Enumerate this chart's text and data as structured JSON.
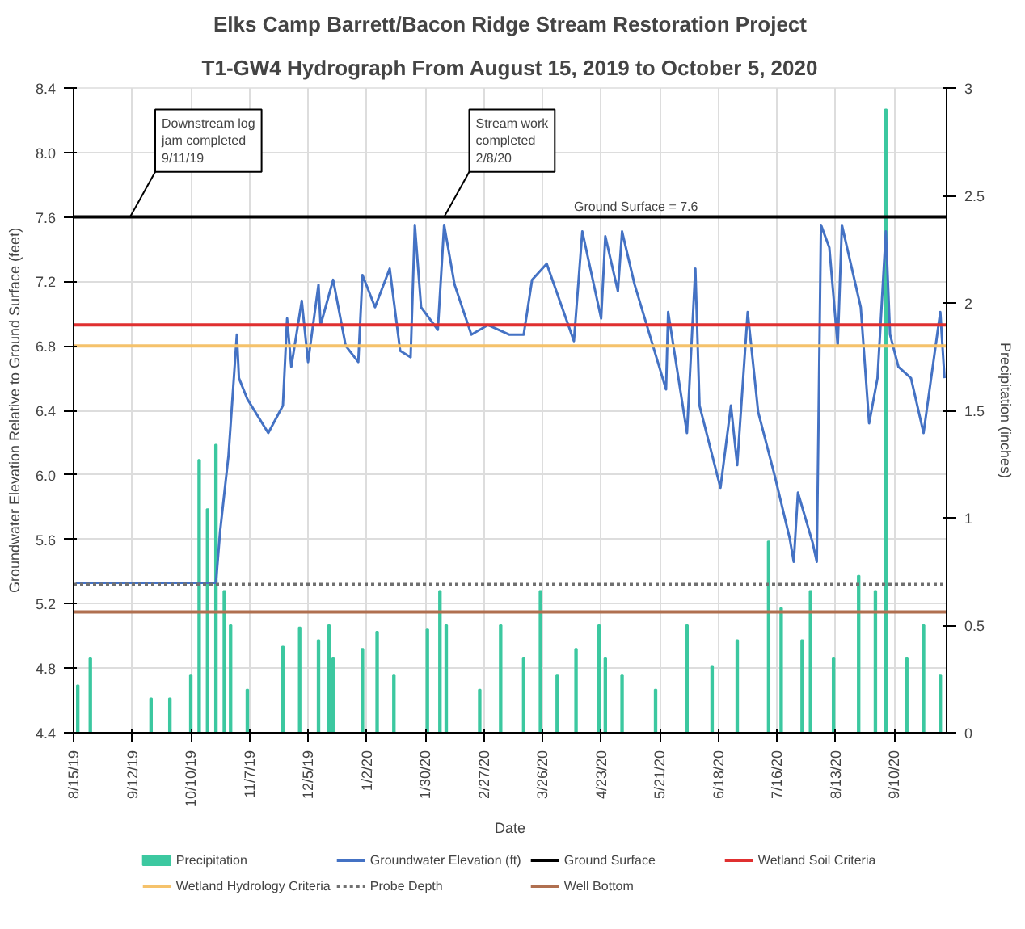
{
  "chart_data": {
    "type": "line",
    "title": "Elks Camp Barrett/Bacon Ridge Stream Restoration Project",
    "subtitle": "T1-GW4 Hydrograph From August 15, 2019 to October 5, 2020",
    "xlabel": "Date",
    "ylabel": "Groundwater Elevation Relative to Ground Surface (feet)",
    "y2label": "Precipitation (inches)",
    "xlim": [
      "2019-08-15",
      "2020-10-05"
    ],
    "xticks": [
      {
        "value": "2019-08-15",
        "label": "8/15/19"
      },
      {
        "value": "2019-09-12",
        "label": "9/12/19"
      },
      {
        "value": "2019-10-10",
        "label": "10/10/19"
      },
      {
        "value": "2019-11-07",
        "label": "11/7/19"
      },
      {
        "value": "2019-12-05",
        "label": "12/5/19"
      },
      {
        "value": "2020-01-02",
        "label": "1/2/20"
      },
      {
        "value": "2020-01-30",
        "label": "1/30/20"
      },
      {
        "value": "2020-02-27",
        "label": "2/27/20"
      },
      {
        "value": "2020-03-26",
        "label": "3/26/20"
      },
      {
        "value": "2020-04-23",
        "label": "4/23/20"
      },
      {
        "value": "2020-05-21",
        "label": "5/21/20"
      },
      {
        "value": "2020-06-18",
        "label": "6/18/20"
      },
      {
        "value": "2020-07-16",
        "label": "7/16/20"
      },
      {
        "value": "2020-08-13",
        "label": "8/13/20"
      },
      {
        "value": "2020-09-10",
        "label": "9/10/20"
      }
    ],
    "ylim": [
      4.4,
      8.4
    ],
    "yticks": [
      4.4,
      4.8,
      5.2,
      5.6,
      {
        "value": 6,
        "label": "6.0"
      },
      6.4,
      6.8,
      7.2,
      7.6,
      {
        "value": 8,
        "label": "8.0"
      },
      8.4
    ],
    "y2lim": [
      0,
      3
    ],
    "y2ticks": [
      0,
      0.5,
      1,
      1.5,
      2,
      2.5,
      3
    ],
    "grid": true,
    "legend": "bottom",
    "marker": "none",
    "line_style": "solid",
    "series": [
      {
        "name": "Precipitation",
        "type": "bar",
        "axis": "y2",
        "color": "#3cc8a0",
        "x": [
          "2019-08-17",
          "2019-08-23",
          "2019-09-21",
          "2019-09-30",
          "2019-10-10",
          "2019-10-14",
          "2019-10-18",
          "2019-10-22",
          "2019-10-26",
          "2019-10-29",
          "2019-11-06",
          "2019-11-23",
          "2019-12-01",
          "2019-12-10",
          "2019-12-15",
          "2019-12-17",
          "2019-12-31",
          "2020-01-07",
          "2020-01-15",
          "2020-01-31",
          "2020-02-06",
          "2020-02-09",
          "2020-02-25",
          "2020-03-06",
          "2020-03-17",
          "2020-03-25",
          "2020-04-02",
          "2020-04-11",
          "2020-04-22",
          "2020-04-25",
          "2020-05-03",
          "2020-05-19",
          "2020-06-03",
          "2020-06-15",
          "2020-06-27",
          "2020-07-12",
          "2020-07-18",
          "2020-07-28",
          "2020-08-01",
          "2020-08-12",
          "2020-08-24",
          "2020-09-01",
          "2020-09-06",
          "2020-09-16",
          "2020-09-24",
          "2020-10-02"
        ],
        "values": [
          0.22,
          0.35,
          0.16,
          0.16,
          0.27,
          1.27,
          1.04,
          1.34,
          0.66,
          0.5,
          0.2,
          0.4,
          0.49,
          0.43,
          0.5,
          0.35,
          0.39,
          0.47,
          0.27,
          0.48,
          0.66,
          0.5,
          0.2,
          0.5,
          0.35,
          0.66,
          0.27,
          0.39,
          0.5,
          0.35,
          0.27,
          0.2,
          0.5,
          0.31,
          0.43,
          0.89,
          0.58,
          0.43,
          0.66,
          0.35,
          0.73,
          0.66,
          2.9,
          0.35,
          0.5,
          0.27
        ]
      },
      {
        "name": "Groundwater Elevation (ft)",
        "color": "#4472c4",
        "x": [
          "2019-08-16",
          "2019-10-22",
          "2019-10-24",
          "2019-10-28",
          "2019-11-01",
          "2019-11-02",
          "2019-11-06",
          "2019-11-16",
          "2019-11-23",
          "2019-11-25",
          "2019-11-27",
          "2019-12-02",
          "2019-12-05",
          "2019-12-10",
          "2019-12-11",
          "2019-12-17",
          "2019-12-23",
          "2019-12-29",
          "2019-12-31",
          "2020-01-06",
          "2020-01-13",
          "2020-01-18",
          "2020-01-23",
          "2020-01-25",
          "2020-01-28",
          "2020-02-05",
          "2020-02-08",
          "2020-02-13",
          "2020-02-21",
          "2020-02-29",
          "2020-03-10",
          "2020-03-17",
          "2020-03-21",
          "2020-03-28",
          "2020-04-10",
          "2020-04-14",
          "2020-04-23",
          "2020-04-25",
          "2020-05-01",
          "2020-05-03",
          "2020-05-09",
          "2020-05-24",
          "2020-05-25",
          "2020-06-03",
          "2020-06-07",
          "2020-06-09",
          "2020-06-19",
          "2020-06-24",
          "2020-06-27",
          "2020-07-02",
          "2020-07-07",
          "2020-07-15",
          "2020-07-22",
          "2020-07-24",
          "2020-07-26",
          "2020-08-02",
          "2020-08-04",
          "2020-08-06",
          "2020-08-10",
          "2020-08-14",
          "2020-08-16",
          "2020-08-25",
          "2020-08-29",
          "2020-09-02",
          "2020-09-06",
          "2020-09-08",
          "2020-09-12",
          "2020-09-18",
          "2020-09-24",
          "2020-10-02",
          "2020-10-04"
        ],
        "values": [
          5.33,
          5.33,
          5.65,
          6.12,
          6.87,
          6.6,
          6.47,
          6.26,
          6.43,
          6.97,
          6.67,
          7.08,
          6.7,
          7.18,
          6.93,
          7.21,
          6.8,
          6.7,
          7.24,
          7.04,
          7.28,
          6.77,
          6.73,
          7.55,
          7.04,
          6.9,
          7.55,
          7.18,
          6.87,
          6.93,
          6.87,
          6.87,
          7.21,
          7.31,
          6.83,
          7.51,
          6.97,
          7.48,
          7.14,
          7.51,
          7.18,
          6.53,
          7.01,
          6.26,
          7.28,
          6.43,
          5.92,
          6.43,
          6.06,
          7.01,
          6.39,
          5.99,
          5.61,
          5.46,
          5.89,
          5.58,
          5.46,
          7.55,
          7.41,
          6.8,
          7.55,
          7.04,
          6.32,
          6.6,
          7.51,
          6.87,
          6.67,
          6.6,
          6.26,
          7.01,
          6.6
        ]
      }
    ],
    "ref_lines": [
      {
        "axis": "y",
        "value": 7.6,
        "label": "Ground Surface",
        "color": "#000000",
        "line_style": "solid"
      },
      {
        "axis": "y",
        "value": 6.93,
        "label": "Wetland Soil Criteria",
        "color": "#e03030",
        "line_style": "solid"
      },
      {
        "axis": "y",
        "value": 6.8,
        "label": "Wetland Hydrology Criteria",
        "color": "#f5c26b",
        "line_style": "solid"
      },
      {
        "axis": "y",
        "value": 5.32,
        "label": "Probe Depth",
        "color": "#707070",
        "line_style": "dotted"
      },
      {
        "axis": "y",
        "value": 5.15,
        "label": "Well Bottom",
        "color": "#b07050",
        "line_style": "solid"
      }
    ],
    "annotations": [
      {
        "text": "Downstream log\njam completed\n9/11/19",
        "x": "2019-09-11",
        "y": 7.6
      },
      {
        "text": "Stream work\ncompleted\n2/8/20",
        "x": "2020-02-08",
        "y": 7.6
      },
      {
        "text": "Ground Surface = 7.6",
        "x": "2020-04-10",
        "y": 7.6
      }
    ]
  }
}
